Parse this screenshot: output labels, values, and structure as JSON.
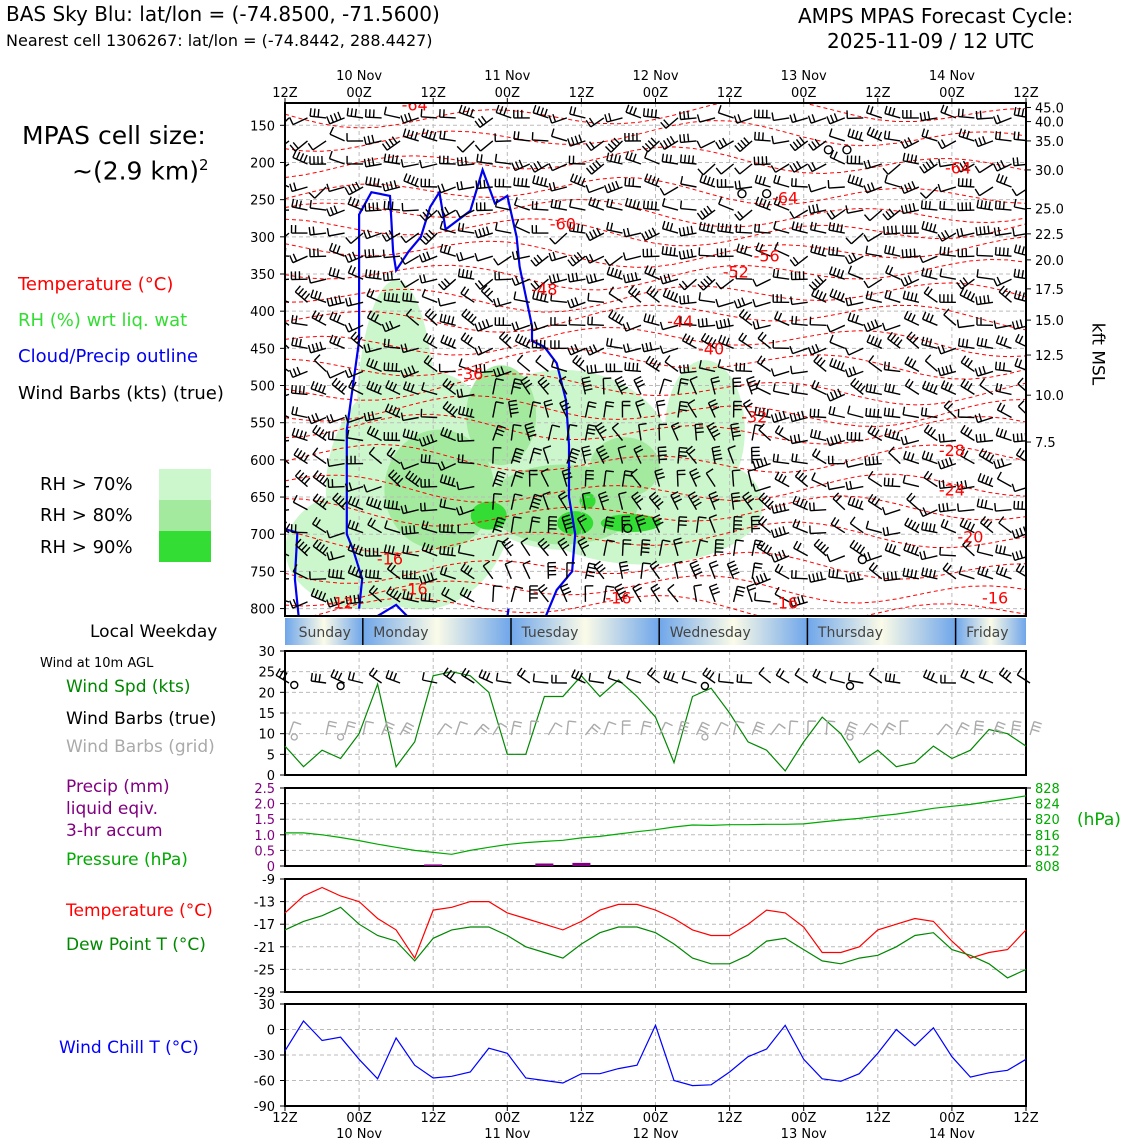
{
  "header": {
    "title_left": "BAS Sky Blu: lat/lon = (-74.8500, -71.5600)",
    "subtitle_left": "Nearest cell 1306267: lat/lon = (-74.8442, 288.4427)",
    "title_right_line1": "AMPS MPAS Forecast Cycle:",
    "title_right_line2": "2025-11-09 / 12 UTC"
  },
  "colors": {
    "temperature": "#ff0000",
    "rh_label": "#33dd33",
    "rh70": "#ccf7cc",
    "rh80": "#a3ea9f",
    "rh90": "#33dd33",
    "cloud": "#0000ee",
    "wind_speed": "#008800",
    "precip": "#800080",
    "pressure": "#00aa00",
    "wind_chill": "#0000ff",
    "grid_barb": "#aaaaaa"
  },
  "left_legend": {
    "cell_size_line1": "MPAS cell size:",
    "cell_size_line2": "~(2.9 km)",
    "cell_size_sup": "2",
    "temperature": "Temperature (°C)",
    "rh": "RH (%) wrt liq. wat",
    "cloud": "Cloud/Precip outline",
    "wind_barbs": "Wind Barbs (kts) (true)",
    "rh70": "RH > 70%",
    "rh80": "RH > 80%",
    "rh90": "RH > 90%",
    "local_weekday": "Local Weekday",
    "wind_10m": "Wind at 10m AGL",
    "wind_spd": "Wind Spd (kts)",
    "wind_barbs_true": "Wind Barbs (true)",
    "wind_barbs_grid": "Wind Barbs (grid)",
    "precip_line1": "Precip (mm)",
    "precip_line2": "liquid eqiv.",
    "precip_line3": "3-hr accum",
    "pressure": "Pressure (hPa)",
    "temperature2": "Temperature (°C)",
    "dewpoint": "Dew Point T (°C)",
    "wind_chill": "Wind Chill T (°C)",
    "right_axis_label": "kft MSL",
    "hpa_label": "(hPa)"
  },
  "time_axis": {
    "top_ticks": [
      "12Z",
      "00Z",
      "12Z",
      "00Z",
      "12Z",
      "00Z",
      "12Z",
      "00Z",
      "12Z",
      "00Z",
      "12Z"
    ],
    "day_labels": [
      "10 Nov",
      "11 Nov",
      "12 Nov",
      "13 Nov",
      "14 Nov"
    ],
    "day_label_tick_index": [
      1,
      3,
      5,
      7,
      9
    ],
    "weekdays": [
      "Sunday",
      "Monday",
      "Tuesday",
      "Wednesday",
      "Thursday",
      "Friday"
    ]
  },
  "chart_data": [
    {
      "type": "area",
      "name": "cross-section",
      "yaxis_left_label": "",
      "pressure_ticks": [
        150,
        200,
        250,
        300,
        350,
        400,
        450,
        500,
        550,
        600,
        650,
        700,
        750,
        800
      ],
      "ylim": [
        120,
        810
      ],
      "height_ticks_kft": [
        "45.0",
        "40.0",
        "35.0",
        "30.0",
        "25.0",
        "22.5",
        "20.0",
        "17.5",
        "15.0",
        "12.5",
        "10.0",
        "7.5"
      ],
      "height_tick_pressure": [
        126,
        145,
        171,
        210,
        262,
        296,
        331,
        370,
        412,
        459,
        513,
        576
      ],
      "xlim_hours": [
        0,
        120
      ],
      "temperature_labels": [
        {
          "text": "-64",
          "h": 21,
          "p": 130
        },
        {
          "text": "-64",
          "h": 81,
          "p": 255
        },
        {
          "text": "-64",
          "h": 109,
          "p": 215
        },
        {
          "text": "-60",
          "h": 45,
          "p": 290
        },
        {
          "text": "-56",
          "h": 78,
          "p": 333
        },
        {
          "text": "-52",
          "h": 73,
          "p": 355
        },
        {
          "text": "-48",
          "h": 42,
          "p": 378
        },
        {
          "text": "-44",
          "h": 64,
          "p": 421
        },
        {
          "text": "-40",
          "h": 69,
          "p": 458
        },
        {
          "text": "-36",
          "h": 30,
          "p": 492
        },
        {
          "text": "-32",
          "h": 76,
          "p": 550
        },
        {
          "text": "-28",
          "h": 108,
          "p": 595
        },
        {
          "text": "-24",
          "h": 108,
          "p": 648
        },
        {
          "text": "-20",
          "h": 111,
          "p": 711
        },
        {
          "text": "-16",
          "h": 17,
          "p": 741
        },
        {
          "text": "-16",
          "h": 21,
          "p": 781
        },
        {
          "text": "-16",
          "h": 54,
          "p": 793
        },
        {
          "text": "-16",
          "h": 81,
          "p": 800
        },
        {
          "text": "-16",
          "h": 115,
          "p": 793
        },
        {
          "text": "-12",
          "h": 9,
          "p": 800
        }
      ]
    },
    {
      "type": "line",
      "name": "wind10m",
      "x_hours": [
        0,
        3,
        6,
        9,
        12,
        15,
        18,
        21,
        24,
        27,
        30,
        33,
        36,
        39,
        42,
        45,
        48,
        51,
        54,
        57,
        60,
        63,
        66,
        69,
        72,
        75,
        78,
        81,
        84,
        87,
        90,
        93,
        96,
        99,
        102,
        105,
        108,
        111,
        114,
        117,
        120
      ],
      "series": [
        {
          "name": "Wind Spd (kts)",
          "values": [
            7,
            2,
            6,
            4,
            10,
            22,
            2,
            8,
            24,
            25,
            24,
            20,
            5,
            5,
            19,
            19,
            24,
            19,
            23,
            19,
            14,
            3,
            19,
            21,
            15,
            8,
            6,
            1,
            8,
            14,
            10,
            3,
            6,
            2,
            3,
            7,
            4,
            6,
            11,
            10,
            7
          ]
        }
      ],
      "ylim": [
        0,
        30
      ],
      "yticks": [
        0,
        5,
        10,
        15,
        20,
        25,
        30
      ]
    },
    {
      "type": "line",
      "name": "precip-pressure",
      "precip_ylim": [
        0,
        2.5
      ],
      "precip_ticks": [
        "0",
        "0.5",
        "1.0",
        "1.5",
        "2.0",
        "2.5"
      ],
      "precip_bars": [
        {
          "h": 24,
          "v": 0.05
        },
        {
          "h": 42,
          "v": 0.08
        },
        {
          "h": 48,
          "v": 0.1
        }
      ],
      "pressure_ylim": [
        808,
        828
      ],
      "pressure_ticks": [
        "808",
        "812",
        "816",
        "820",
        "824",
        "828"
      ],
      "x_hours": [
        0,
        3,
        6,
        9,
        12,
        15,
        18,
        21,
        24,
        27,
        30,
        33,
        36,
        39,
        42,
        45,
        48,
        51,
        54,
        57,
        60,
        63,
        66,
        69,
        72,
        75,
        78,
        81,
        84,
        87,
        90,
        93,
        96,
        99,
        102,
        105,
        108,
        111,
        114,
        117,
        120
      ],
      "series": [
        {
          "name": "Pressure (hPa)",
          "values": [
            816.5,
            816.5,
            816.0,
            815.3,
            814.5,
            813.6,
            812.8,
            812.0,
            811.5,
            811.0,
            812.0,
            812.8,
            813.5,
            814.0,
            814.3,
            814.6,
            815.2,
            815.6,
            816.2,
            816.8,
            817.3,
            818.0,
            818.5,
            818.4,
            818.6,
            818.6,
            818.7,
            818.7,
            818.8,
            819.3,
            819.8,
            820.2,
            820.8,
            821.3,
            822.0,
            822.8,
            823.3,
            823.8,
            824.5,
            825.2,
            826.0
          ]
        }
      ]
    },
    {
      "type": "line",
      "name": "temperature-dewpoint",
      "ylim": [
        -29,
        -9
      ],
      "yticks": [
        -29,
        -25,
        -21,
        -17,
        -13,
        -9
      ],
      "x_hours": [
        0,
        3,
        6,
        9,
        12,
        15,
        18,
        21,
        24,
        27,
        30,
        33,
        36,
        39,
        42,
        45,
        48,
        51,
        54,
        57,
        60,
        63,
        66,
        69,
        72,
        75,
        78,
        81,
        84,
        87,
        90,
        93,
        96,
        99,
        102,
        105,
        108,
        111,
        114,
        117,
        120
      ],
      "series": [
        {
          "name": "Temperature (°C)",
          "values": [
            -15,
            -12,
            -10.5,
            -12,
            -13,
            -16,
            -18,
            -23,
            -14.5,
            -14,
            -13,
            -13,
            -15,
            -16,
            -17,
            -18,
            -16.5,
            -14.5,
            -13.5,
            -13.5,
            -14.5,
            -16,
            -18,
            -19,
            -19,
            -17,
            -14.5,
            -15,
            -17.5,
            -22,
            -22,
            -21,
            -18,
            -17,
            -16,
            -16.5,
            -20,
            -23,
            -22,
            -21.5,
            -18
          ]
        },
        {
          "name": "Dew Point T (°C)",
          "values": [
            -18,
            -16.5,
            -15.5,
            -14,
            -17,
            -19,
            -20,
            -23.5,
            -19.5,
            -18,
            -17.5,
            -17.5,
            -19,
            -21,
            -22,
            -23,
            -20.5,
            -18.5,
            -17.5,
            -17.5,
            -18.5,
            -20.5,
            -23,
            -24,
            -24,
            -22.5,
            -20,
            -19.5,
            -21.5,
            -23.5,
            -24,
            -23,
            -22.5,
            -21,
            -19,
            -18.5,
            -21.5,
            -22.5,
            -24,
            -26.5,
            -25
          ]
        }
      ]
    },
    {
      "type": "line",
      "name": "wind-chill",
      "ylim": [
        -90,
        30
      ],
      "yticks": [
        -90,
        -60,
        -30,
        0,
        30
      ],
      "x_hours": [
        0,
        3,
        6,
        9,
        12,
        15,
        18,
        21,
        24,
        27,
        30,
        33,
        36,
        39,
        42,
        45,
        48,
        51,
        54,
        57,
        60,
        63,
        66,
        69,
        72,
        75,
        78,
        81,
        84,
        87,
        90,
        93,
        96,
        99,
        102,
        105,
        108,
        111,
        114,
        117,
        120
      ],
      "series": [
        {
          "name": "Wind Chill T (°C)",
          "values": [
            -25,
            10,
            -13,
            -9,
            -35,
            -58,
            -10,
            -42,
            -57,
            -55,
            -50,
            -22,
            -28,
            -57,
            -60,
            -63,
            -52,
            -52,
            -46,
            -42,
            5,
            -60,
            -66,
            -65,
            -50,
            -32,
            -23,
            5,
            -35,
            -58,
            -61,
            -52,
            -28,
            0,
            -19,
            2,
            -32,
            -56,
            -51,
            -48,
            -35
          ]
        }
      ]
    }
  ]
}
